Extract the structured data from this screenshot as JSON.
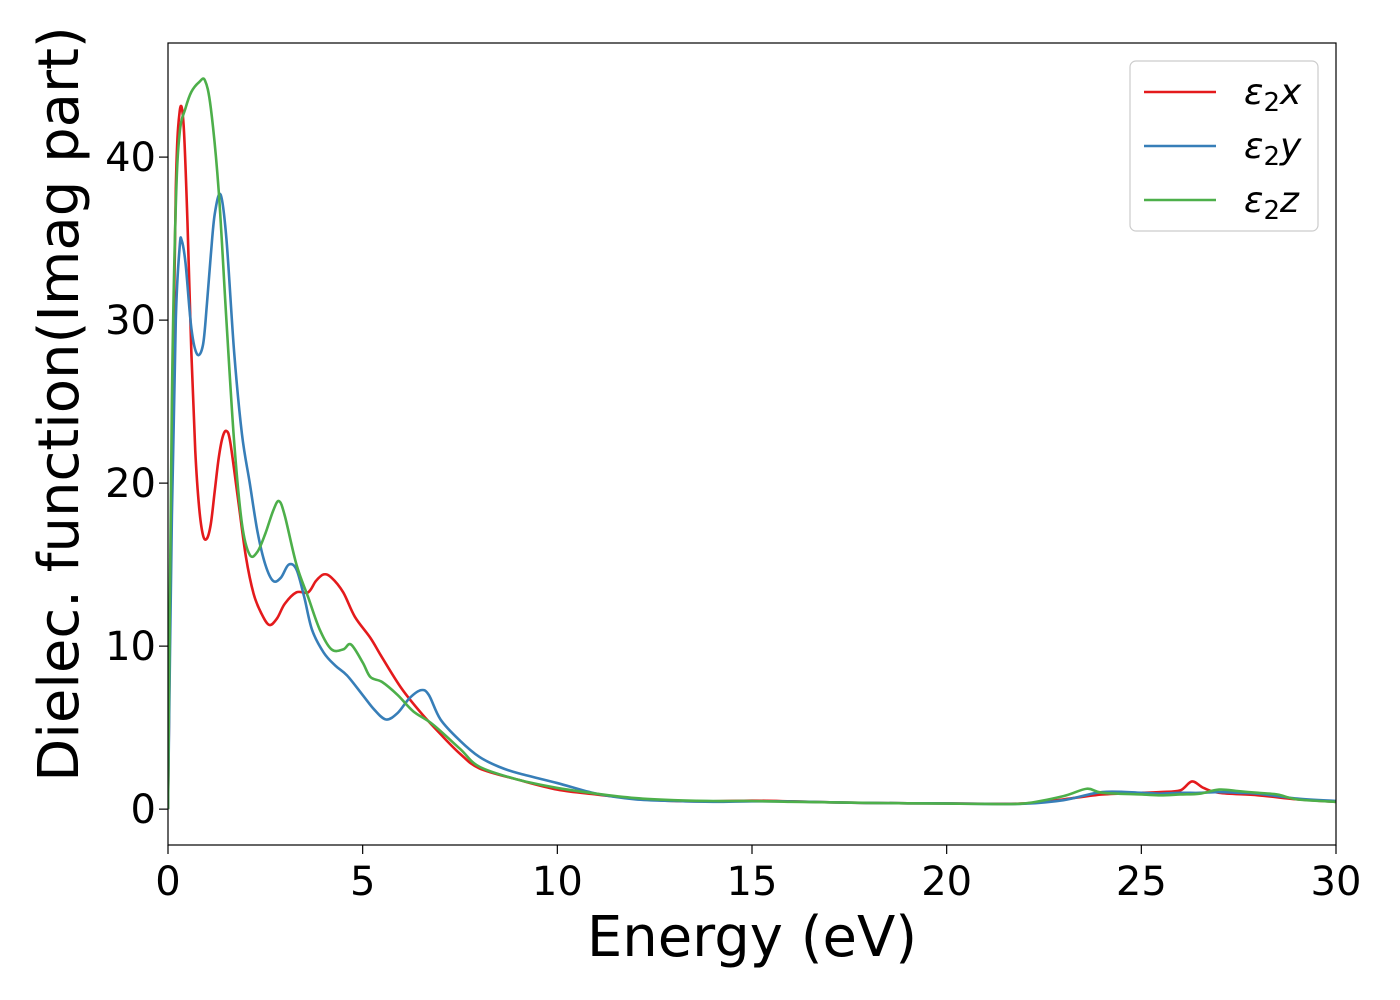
{
  "chart_data": {
    "type": "line",
    "xlabel": "Energy (eV)",
    "ylabel": "Dielec. function(Imag part)",
    "xlim": [
      0,
      30
    ],
    "ylim": [
      -2.2,
      47
    ],
    "xticks": [
      0,
      5,
      10,
      15,
      20,
      25,
      30
    ],
    "yticks": [
      0,
      10,
      20,
      30,
      40
    ],
    "grid": false,
    "legend_position": "top-right",
    "series": [
      {
        "name": "ε2x",
        "legend": {
          "base": "ε",
          "sub": "2",
          "tail": "x"
        },
        "color": "#e41a1c",
        "points": [
          [
            0,
            0
          ],
          [
            0.1,
            22
          ],
          [
            0.2,
            38
          ],
          [
            0.3,
            42.8
          ],
          [
            0.4,
            42
          ],
          [
            0.5,
            36
          ],
          [
            0.6,
            28
          ],
          [
            0.7,
            22
          ],
          [
            0.8,
            18.5
          ],
          [
            0.9,
            16.8
          ],
          [
            1.0,
            16.6
          ],
          [
            1.1,
            17.5
          ],
          [
            1.2,
            19.5
          ],
          [
            1.3,
            21.5
          ],
          [
            1.4,
            22.8
          ],
          [
            1.5,
            23.2
          ],
          [
            1.6,
            22.5
          ],
          [
            1.8,
            19
          ],
          [
            2.0,
            15.5
          ],
          [
            2.2,
            13.2
          ],
          [
            2.4,
            12
          ],
          [
            2.6,
            11.3
          ],
          [
            2.8,
            11.7
          ],
          [
            3.0,
            12.6
          ],
          [
            3.3,
            13.3
          ],
          [
            3.6,
            13.3
          ],
          [
            3.8,
            14
          ],
          [
            4.0,
            14.4
          ],
          [
            4.2,
            14.2
          ],
          [
            4.5,
            13.3
          ],
          [
            4.8,
            11.8
          ],
          [
            5.2,
            10.5
          ],
          [
            5.5,
            9.3
          ],
          [
            6.0,
            7.4
          ],
          [
            6.5,
            5.9
          ],
          [
            7.0,
            4.6
          ],
          [
            7.5,
            3.4
          ],
          [
            8.0,
            2.5
          ],
          [
            9.0,
            1.8
          ],
          [
            10.0,
            1.2
          ],
          [
            11.0,
            0.9
          ],
          [
            12.0,
            0.65
          ],
          [
            13.0,
            0.5
          ],
          [
            14.0,
            0.48
          ],
          [
            15.0,
            0.52
          ],
          [
            16.0,
            0.48
          ],
          [
            17.0,
            0.42
          ],
          [
            18.0,
            0.38
          ],
          [
            19.0,
            0.36
          ],
          [
            20.0,
            0.35
          ],
          [
            21.0,
            0.33
          ],
          [
            22.0,
            0.35
          ],
          [
            23.0,
            0.6
          ],
          [
            24.0,
            0.9
          ],
          [
            25.0,
            1.0
          ],
          [
            25.5,
            1.05
          ],
          [
            26.0,
            1.15
          ],
          [
            26.3,
            1.7
          ],
          [
            26.6,
            1.3
          ],
          [
            27.0,
            1.0
          ],
          [
            28.0,
            0.85
          ],
          [
            29.0,
            0.6
          ],
          [
            30.0,
            0.45
          ]
        ]
      },
      {
        "name": "ε2y",
        "legend": {
          "base": "ε",
          "sub": "2",
          "tail": "y"
        },
        "color": "#377eb8",
        "points": [
          [
            0,
            0
          ],
          [
            0.1,
            18
          ],
          [
            0.2,
            30
          ],
          [
            0.3,
            34.5
          ],
          [
            0.35,
            34.9
          ],
          [
            0.45,
            33.5
          ],
          [
            0.6,
            29.5
          ],
          [
            0.75,
            27.9
          ],
          [
            0.9,
            28.5
          ],
          [
            1.0,
            31
          ],
          [
            1.1,
            34
          ],
          [
            1.2,
            36.5
          ],
          [
            1.35,
            37.7
          ],
          [
            1.5,
            35
          ],
          [
            1.7,
            28
          ],
          [
            1.9,
            23
          ],
          [
            2.1,
            20
          ],
          [
            2.3,
            17
          ],
          [
            2.5,
            15
          ],
          [
            2.7,
            14
          ],
          [
            2.9,
            14.2
          ],
          [
            3.1,
            15
          ],
          [
            3.3,
            14.7
          ],
          [
            3.5,
            13
          ],
          [
            3.7,
            11
          ],
          [
            4.0,
            9.6
          ],
          [
            4.3,
            8.8
          ],
          [
            4.6,
            8.2
          ],
          [
            5.0,
            7
          ],
          [
            5.3,
            6.1
          ],
          [
            5.6,
            5.5
          ],
          [
            5.9,
            5.9
          ],
          [
            6.2,
            6.8
          ],
          [
            6.5,
            7.3
          ],
          [
            6.7,
            7
          ],
          [
            7.0,
            5.5
          ],
          [
            7.5,
            4.2
          ],
          [
            8.0,
            3.2
          ],
          [
            8.5,
            2.6
          ],
          [
            9.0,
            2.2
          ],
          [
            10.0,
            1.6
          ],
          [
            11.0,
            0.95
          ],
          [
            12.0,
            0.6
          ],
          [
            13.0,
            0.5
          ],
          [
            14.0,
            0.45
          ],
          [
            15.0,
            0.48
          ],
          [
            16.0,
            0.47
          ],
          [
            17.0,
            0.42
          ],
          [
            18.0,
            0.38
          ],
          [
            19.0,
            0.36
          ],
          [
            20.0,
            0.35
          ],
          [
            21.0,
            0.32
          ],
          [
            22.0,
            0.33
          ],
          [
            23.0,
            0.55
          ],
          [
            24.0,
            1.05
          ],
          [
            25.0,
            1.0
          ],
          [
            25.5,
            0.95
          ],
          [
            26.0,
            1.0
          ],
          [
            26.5,
            1.0
          ],
          [
            27.0,
            1.05
          ],
          [
            27.5,
            1.0
          ],
          [
            28.0,
            0.95
          ],
          [
            29.0,
            0.65
          ],
          [
            30.0,
            0.5
          ]
        ]
      },
      {
        "name": "ε2z",
        "legend": {
          "base": "ε",
          "sub": "2",
          "tail": "z"
        },
        "color": "#4daf4a",
        "points": [
          [
            0,
            0
          ],
          [
            0.1,
            25
          ],
          [
            0.2,
            37
          ],
          [
            0.3,
            41.5
          ],
          [
            0.45,
            43
          ],
          [
            0.6,
            44
          ],
          [
            0.8,
            44.6
          ],
          [
            0.95,
            44.7
          ],
          [
            1.1,
            43
          ],
          [
            1.3,
            38
          ],
          [
            1.5,
            30
          ],
          [
            1.7,
            22.5
          ],
          [
            1.9,
            17.5
          ],
          [
            2.1,
            15.6
          ],
          [
            2.3,
            15.8
          ],
          [
            2.5,
            16.9
          ],
          [
            2.7,
            18.3
          ],
          [
            2.85,
            18.9
          ],
          [
            3.0,
            18
          ],
          [
            3.3,
            15
          ],
          [
            3.6,
            13
          ],
          [
            3.9,
            11
          ],
          [
            4.2,
            9.8
          ],
          [
            4.5,
            9.8
          ],
          [
            4.7,
            10.1
          ],
          [
            5.0,
            9
          ],
          [
            5.2,
            8.1
          ],
          [
            5.5,
            7.8
          ],
          [
            5.9,
            7
          ],
          [
            6.3,
            6
          ],
          [
            6.8,
            5.2
          ],
          [
            7.5,
            3.7
          ],
          [
            8.0,
            2.6
          ],
          [
            9.0,
            1.8
          ],
          [
            10.0,
            1.3
          ],
          [
            11.0,
            0.95
          ],
          [
            12.0,
            0.68
          ],
          [
            13.0,
            0.55
          ],
          [
            14.0,
            0.5
          ],
          [
            15.0,
            0.5
          ],
          [
            16.0,
            0.45
          ],
          [
            17.0,
            0.42
          ],
          [
            18.0,
            0.38
          ],
          [
            19.0,
            0.36
          ],
          [
            20.0,
            0.34
          ],
          [
            21.0,
            0.32
          ],
          [
            22.0,
            0.35
          ],
          [
            23.0,
            0.8
          ],
          [
            23.6,
            1.25
          ],
          [
            24.0,
            1.0
          ],
          [
            25.0,
            0.9
          ],
          [
            25.5,
            0.85
          ],
          [
            26.0,
            0.9
          ],
          [
            26.5,
            0.95
          ],
          [
            27.0,
            1.2
          ],
          [
            27.5,
            1.1
          ],
          [
            28.0,
            1.0
          ],
          [
            28.5,
            0.9
          ],
          [
            29.0,
            0.6
          ],
          [
            30.0,
            0.45
          ]
        ]
      }
    ]
  }
}
